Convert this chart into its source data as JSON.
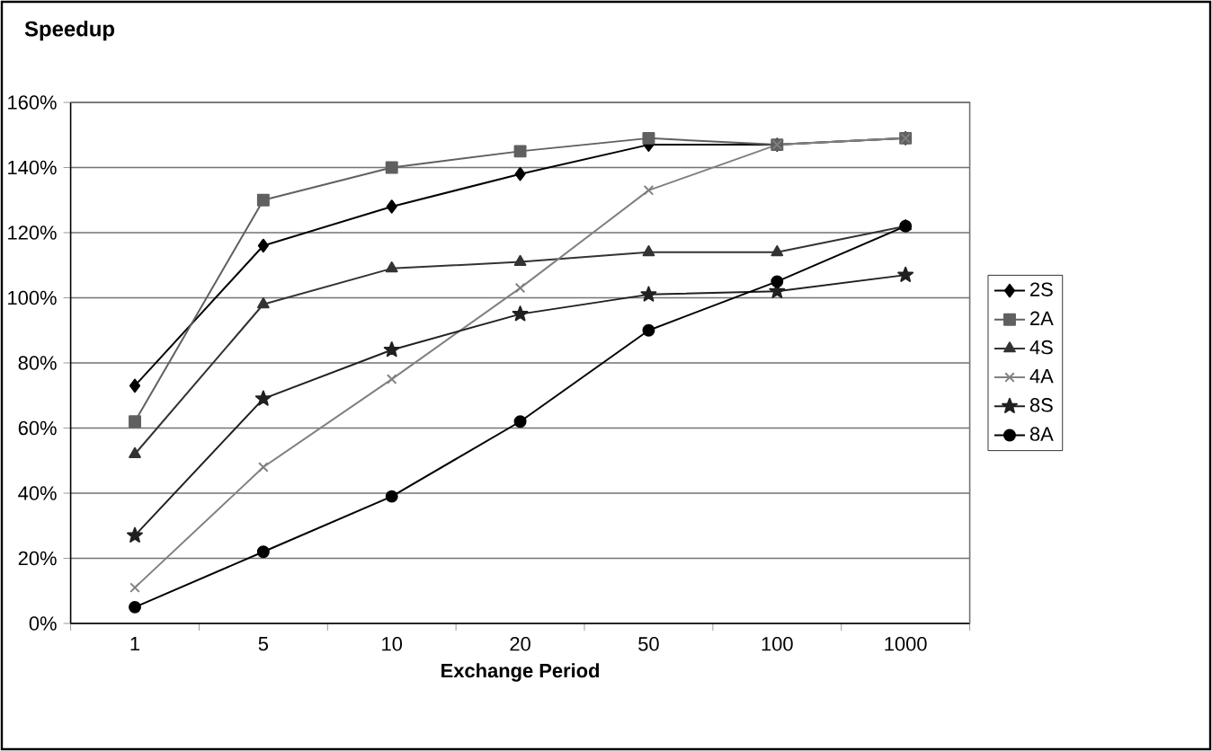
{
  "chart_data": {
    "type": "line",
    "title": "Speedup",
    "xlabel": "Exchange Period",
    "categories": [
      "1",
      "5",
      "10",
      "20",
      "50",
      "100",
      "1000"
    ],
    "ylim": [
      0,
      160
    ],
    "yticks": [
      {
        "value": 0,
        "label": "0%"
      },
      {
        "value": 20,
        "label": "20%"
      },
      {
        "value": 40,
        "label": "40%"
      },
      {
        "value": 60,
        "label": "60%"
      },
      {
        "value": 80,
        "label": "80%"
      },
      {
        "value": 100,
        "label": "100%"
      },
      {
        "value": 120,
        "label": "120%"
      },
      {
        "value": 140,
        "label": "140%"
      },
      {
        "value": 160,
        "label": "160%"
      }
    ],
    "grid": "y",
    "legend": "right",
    "series": [
      {
        "name": "2S",
        "color": "#000000",
        "marker": "diamond",
        "values": [
          73,
          116,
          128,
          138,
          147,
          147,
          149
        ]
      },
      {
        "name": "2A",
        "color": "#606060",
        "marker": "square",
        "values": [
          62,
          130,
          140,
          145,
          149,
          147,
          149
        ]
      },
      {
        "name": "4S",
        "color": "#333333",
        "marker": "triangle",
        "values": [
          52,
          98,
          109,
          111,
          114,
          114,
          122
        ]
      },
      {
        "name": "4A",
        "color": "#808080",
        "marker": "cross",
        "values": [
          11,
          48,
          75,
          103,
          133,
          147,
          149
        ]
      },
      {
        "name": "8S",
        "color": "#202020",
        "marker": "star",
        "values": [
          27,
          69,
          84,
          95,
          101,
          102,
          107
        ]
      },
      {
        "name": "8A",
        "color": "#000000",
        "marker": "circle",
        "values": [
          5,
          22,
          39,
          62,
          90,
          105,
          122
        ]
      }
    ]
  }
}
